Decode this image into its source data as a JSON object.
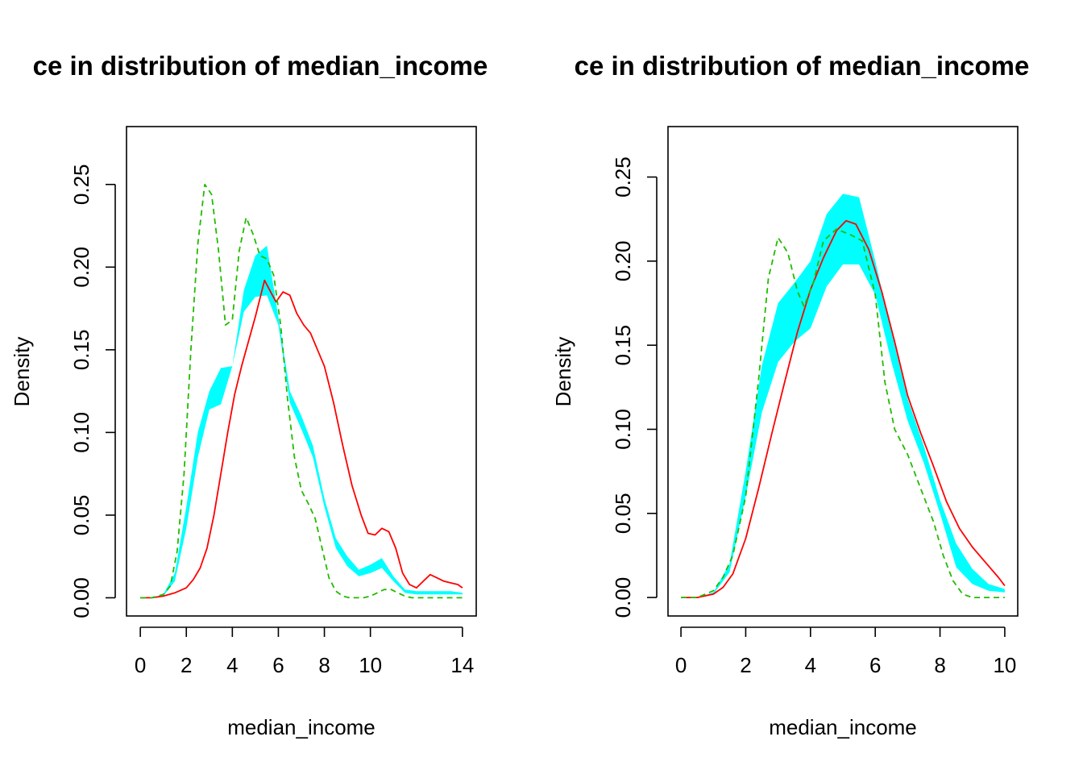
{
  "chart_data": [
    {
      "type": "area",
      "title": "ce in distribution of median_income",
      "xlabel": "median_income",
      "ylabel": "Density",
      "xlim": [
        -0.6,
        14.6
      ],
      "ylim": [
        -0.011,
        0.285
      ],
      "x_ticks": [
        0,
        2,
        4,
        6,
        8,
        10,
        14
      ],
      "y_ticks": [
        0.0,
        0.05,
        0.1,
        0.15,
        0.2,
        0.25
      ],
      "y_tick_labels": [
        "0.00",
        "0.05",
        "0.10",
        "0.15",
        "0.20",
        "0.25"
      ],
      "grid": false,
      "colors": {
        "band": "#00FFFF",
        "solid": "#FF0000",
        "dashed": "#22BB00"
      },
      "band": {
        "x": [
          0,
          0.5,
          1.0,
          1.5,
          2.0,
          2.5,
          3.0,
          3.5,
          4.0,
          4.5,
          5.0,
          5.5,
          6.0,
          6.5,
          7.0,
          7.5,
          8.0,
          8.5,
          9.0,
          9.5,
          10.0,
          10.5,
          11.0,
          11.5,
          12.0,
          12.5,
          13.0,
          13.5,
          14.0
        ],
        "lower": [
          0,
          0,
          0.001,
          0.01,
          0.042,
          0.085,
          0.114,
          0.117,
          0.14,
          0.173,
          0.182,
          0.183,
          0.165,
          0.118,
          0.102,
          0.085,
          0.055,
          0.03,
          0.019,
          0.013,
          0.015,
          0.018,
          0.01,
          0.003,
          0.002,
          0.002,
          0.002,
          0.002,
          0.002
        ],
        "upper": [
          0,
          0,
          0.002,
          0.015,
          0.055,
          0.1,
          0.125,
          0.139,
          0.14,
          0.186,
          0.207,
          0.213,
          0.17,
          0.125,
          0.11,
          0.092,
          0.06,
          0.036,
          0.025,
          0.017,
          0.02,
          0.024,
          0.013,
          0.005,
          0.004,
          0.004,
          0.004,
          0.004,
          0.003
        ]
      },
      "series": [
        {
          "style": "solid",
          "x": [
            0,
            0.5,
            1.0,
            1.5,
            2.0,
            2.3,
            2.6,
            2.9,
            3.2,
            3.5,
            3.8,
            4.1,
            4.4,
            4.7,
            5.0,
            5.4,
            5.7,
            5.9,
            6.2,
            6.5,
            6.8,
            7.1,
            7.4,
            7.7,
            8.0,
            8.4,
            8.8,
            9.2,
            9.6,
            9.9,
            10.2,
            10.5,
            10.8,
            11.1,
            11.4,
            11.7,
            12.0,
            12.3,
            12.6,
            12.9,
            13.2,
            13.5,
            13.8,
            14.0
          ],
          "y": [
            0,
            0.0,
            0.001,
            0.003,
            0.006,
            0.011,
            0.018,
            0.03,
            0.05,
            0.075,
            0.1,
            0.123,
            0.14,
            0.155,
            0.17,
            0.192,
            0.184,
            0.179,
            0.185,
            0.183,
            0.172,
            0.165,
            0.16,
            0.15,
            0.14,
            0.118,
            0.092,
            0.068,
            0.05,
            0.039,
            0.038,
            0.042,
            0.04,
            0.03,
            0.015,
            0.008,
            0.006,
            0.01,
            0.014,
            0.012,
            0.01,
            0.009,
            0.008,
            0.006
          ]
        },
        {
          "style": "dashed",
          "x": [
            0,
            0.5,
            1.0,
            1.3,
            1.6,
            1.9,
            2.2,
            2.5,
            2.8,
            3.1,
            3.4,
            3.7,
            4.0,
            4.3,
            4.6,
            4.9,
            5.2,
            5.5,
            5.8,
            6.1,
            6.4,
            6.7,
            7.0,
            7.3,
            7.6,
            7.9,
            8.2,
            8.5,
            8.8,
            9.1,
            9.4,
            9.7,
            10.0,
            10.3,
            10.6,
            10.9,
            11.2,
            11.5,
            11.8,
            12.1,
            12.4,
            12.7,
            13.0,
            13.5,
            14.0
          ],
          "y": [
            0,
            0.0,
            0.002,
            0.007,
            0.028,
            0.075,
            0.15,
            0.214,
            0.25,
            0.244,
            0.21,
            0.165,
            0.168,
            0.21,
            0.23,
            0.22,
            0.207,
            0.205,
            0.195,
            0.165,
            0.12,
            0.085,
            0.065,
            0.057,
            0.048,
            0.03,
            0.012,
            0.004,
            0.001,
            0.0,
            0.0,
            0.0,
            0.001,
            0.003,
            0.005,
            0.005,
            0.003,
            0.001,
            0.0,
            0.0,
            0.0,
            0.0,
            0.0,
            0.0,
            0.0
          ]
        }
      ]
    },
    {
      "type": "area",
      "title": "ce in distribution of median_income",
      "xlabel": "median_income",
      "ylabel": "Density",
      "xlim": [
        -0.4,
        10.4
      ],
      "ylim": [
        -0.011,
        0.28
      ],
      "x_ticks": [
        0,
        2,
        4,
        6,
        8,
        10
      ],
      "y_ticks": [
        0.0,
        0.05,
        0.1,
        0.15,
        0.2,
        0.25
      ],
      "y_tick_labels": [
        "0.00",
        "0.05",
        "0.10",
        "0.15",
        "0.20",
        "0.25"
      ],
      "grid": false,
      "colors": {
        "band": "#00FFFF",
        "solid": "#FF0000",
        "dashed": "#22BB00"
      },
      "band": {
        "x": [
          0,
          0.5,
          1.0,
          1.5,
          2.0,
          2.5,
          3.0,
          3.5,
          4.0,
          4.5,
          5.0,
          5.5,
          6.0,
          6.5,
          7.0,
          7.5,
          8.0,
          8.5,
          9.0,
          9.5,
          10.0
        ],
        "lower": [
          0,
          0.0,
          0.002,
          0.015,
          0.06,
          0.11,
          0.14,
          0.152,
          0.16,
          0.185,
          0.198,
          0.198,
          0.18,
          0.14,
          0.105,
          0.08,
          0.05,
          0.018,
          0.008,
          0.004,
          0.003
        ],
        "upper": [
          0,
          0.0,
          0.003,
          0.02,
          0.075,
          0.138,
          0.175,
          0.187,
          0.2,
          0.228,
          0.24,
          0.238,
          0.2,
          0.158,
          0.118,
          0.09,
          0.058,
          0.032,
          0.017,
          0.008,
          0.005
        ]
      },
      "series": [
        {
          "style": "solid",
          "x": [
            0,
            0.5,
            1.0,
            1.3,
            1.6,
            2.0,
            2.4,
            2.8,
            3.2,
            3.6,
            4.0,
            4.4,
            4.8,
            5.1,
            5.4,
            5.8,
            6.2,
            6.6,
            7.0,
            7.4,
            7.8,
            8.2,
            8.6,
            9.0,
            9.4,
            9.8,
            10.0
          ],
          "y": [
            0,
            0.0,
            0.002,
            0.006,
            0.014,
            0.035,
            0.065,
            0.097,
            0.128,
            0.158,
            0.183,
            0.202,
            0.218,
            0.224,
            0.222,
            0.207,
            0.182,
            0.152,
            0.12,
            0.098,
            0.078,
            0.057,
            0.041,
            0.03,
            0.021,
            0.012,
            0.007
          ]
        },
        {
          "style": "dashed",
          "x": [
            0,
            0.5,
            1.0,
            1.3,
            1.6,
            2.0,
            2.4,
            2.7,
            3.0,
            3.3,
            3.6,
            3.8,
            4.1,
            4.4,
            4.8,
            5.2,
            5.6,
            6.0,
            6.3,
            6.6,
            7.0,
            7.4,
            7.8,
            8.1,
            8.4,
            8.7,
            9.0,
            9.5,
            10.0
          ],
          "y": [
            0,
            0.0,
            0.004,
            0.012,
            0.025,
            0.06,
            0.13,
            0.19,
            0.214,
            0.205,
            0.182,
            0.173,
            0.188,
            0.212,
            0.219,
            0.216,
            0.212,
            0.18,
            0.128,
            0.1,
            0.085,
            0.065,
            0.045,
            0.025,
            0.01,
            0.002,
            0.0,
            0.0,
            0.0
          ]
        }
      ]
    }
  ]
}
